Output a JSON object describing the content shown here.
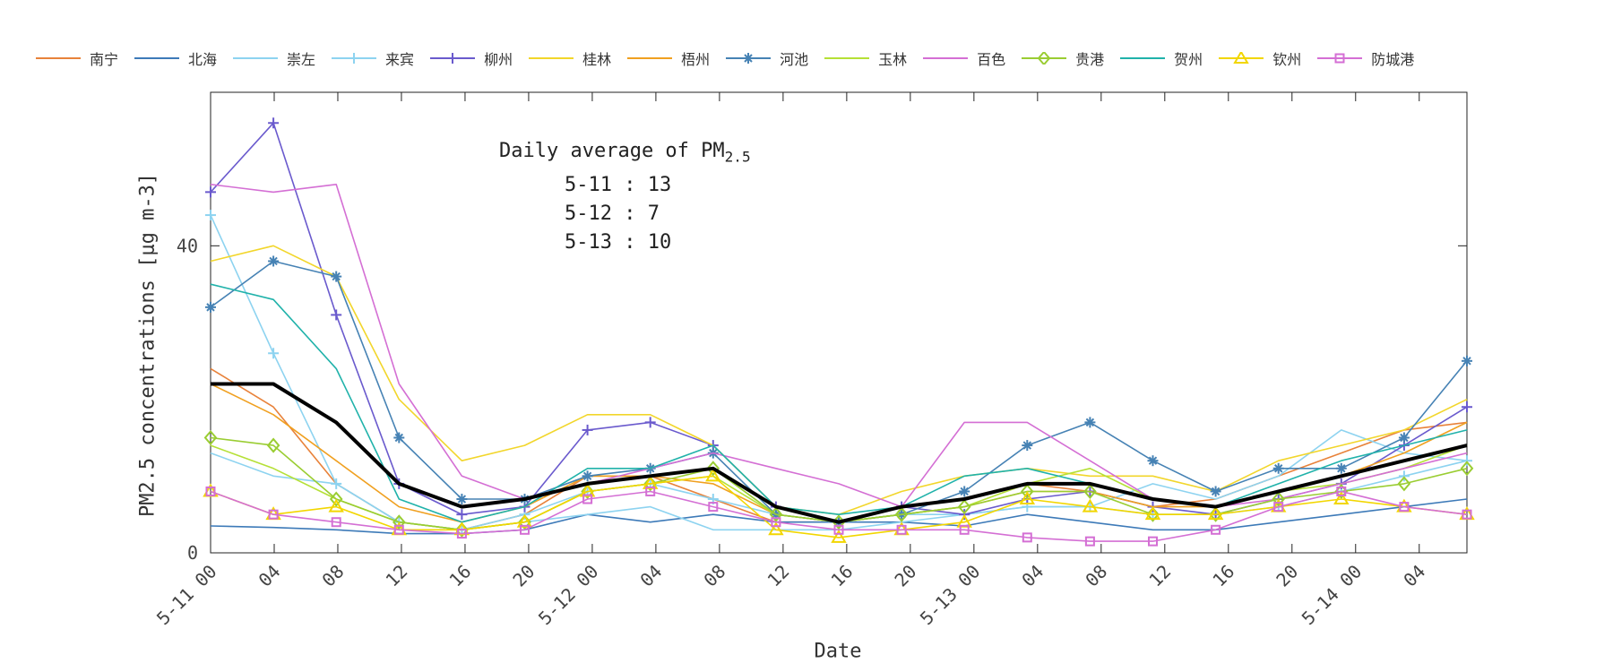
{
  "chart_data": {
    "type": "line",
    "title": "",
    "xlabel": "Date",
    "ylabel": "PM2.5 concentrations [μg m-3]",
    "ylim": [
      0,
      60
    ],
    "xlim": [
      "5-11 00",
      "5-14 07"
    ],
    "yticks": [
      "0",
      "40"
    ],
    "xticks": [
      "5-11 00",
      "04",
      "08",
      "12",
      "16",
      "20",
      "5-12 00",
      "04",
      "08",
      "12",
      "16",
      "20",
      "5-13 00",
      "04",
      "08",
      "12",
      "16",
      "20",
      "5-14 00",
      "04"
    ],
    "grid": false,
    "legend_position": "top",
    "annotation": {
      "heading_main": "Daily average of PM",
      "heading_sub": "2.5",
      "rows": [
        "5-11 : 13",
        "5-12 : 7",
        "5-13 : 10"
      ]
    },
    "x": [
      "5-11 00",
      "5-11 04",
      "5-11 08",
      "5-11 12",
      "5-11 16",
      "5-11 20",
      "5-12 00",
      "5-12 04",
      "5-12 08",
      "5-12 12",
      "5-12 16",
      "5-12 20",
      "5-13 00",
      "5-13 04",
      "5-13 08",
      "5-13 12",
      "5-13 16",
      "5-13 20",
      "5-14 00",
      "5-14 04",
      "5-14 07"
    ],
    "series": [
      {
        "name": "南宁",
        "color": "#e8823a",
        "marker": "none",
        "values": [
          24,
          19,
          9,
          4,
          3,
          5,
          10,
          10,
          7,
          4,
          4,
          6,
          7,
          9,
          8,
          6,
          7,
          10,
          13,
          16,
          17
        ]
      },
      {
        "name": "北海",
        "color": "#3d7ab8",
        "marker": "none",
        "values": [
          3.5,
          3.3,
          3,
          2.5,
          2.5,
          3,
          5,
          4,
          5,
          4,
          4,
          4,
          3.5,
          5,
          4,
          3,
          3,
          4,
          5,
          6,
          7
        ]
      },
      {
        "name": "崇左",
        "color": "#8dd3f0",
        "marker": "none",
        "values": [
          13,
          10,
          9,
          4,
          3,
          4,
          5,
          6,
          3,
          3,
          3,
          4,
          5,
          6,
          6,
          9,
          7,
          10,
          16,
          13,
          12
        ]
      },
      {
        "name": "来宾",
        "color": "#8dd3f0",
        "marker": "plus",
        "values": [
          44,
          26,
          9,
          4,
          3,
          5,
          8,
          9,
          7,
          5,
          4,
          5,
          5,
          6,
          6,
          5,
          5,
          6,
          8,
          10,
          12
        ]
      },
      {
        "name": "柳州",
        "color": "#6a5acd",
        "marker": "plus",
        "values": [
          47,
          56,
          31,
          9,
          5,
          6,
          16,
          17,
          14,
          6,
          4,
          6,
          5,
          7,
          8,
          6,
          5,
          7,
          9,
          14,
          19
        ]
      },
      {
        "name": "桂林",
        "color": "#f2d62b",
        "marker": "none",
        "values": [
          38,
          40,
          36,
          20,
          12,
          14,
          18,
          18,
          14,
          6,
          5,
          8,
          10,
          11,
          10,
          10,
          8,
          12,
          14,
          16,
          20
        ]
      },
      {
        "name": "梧州",
        "color": "#f0a020",
        "marker": "none",
        "values": [
          22,
          18,
          12,
          6,
          4,
          6,
          10,
          10,
          9,
          5,
          4,
          5,
          6,
          8,
          8,
          6,
          6,
          8,
          10,
          13,
          17
        ]
      },
      {
        "name": "河池",
        "color": "#4682b4",
        "marker": "asterisk",
        "values": [
          32,
          38,
          36,
          15,
          7,
          7,
          10,
          11,
          13,
          5,
          4,
          5,
          8,
          14,
          17,
          12,
          8,
          11,
          11,
          15,
          25
        ]
      },
      {
        "name": "玉林",
        "color": "#b5e036",
        "marker": "none",
        "values": [
          14,
          11,
          7,
          4,
          3,
          4,
          8,
          9,
          10,
          5,
          4,
          5,
          6,
          9,
          11,
          7,
          6,
          8,
          9,
          11,
          14
        ]
      },
      {
        "name": "百色",
        "color": "#d46fd4",
        "marker": "none",
        "values": [
          48,
          47,
          48,
          22,
          10,
          7,
          9,
          11,
          13,
          11,
          9,
          6,
          17,
          17,
          12,
          7,
          6,
          7,
          9,
          11,
          13
        ]
      },
      {
        "name": "贵港",
        "color": "#9acd32",
        "marker": "diamond",
        "values": [
          15,
          14,
          7,
          4,
          3,
          4,
          8,
          9,
          11,
          5,
          4,
          5,
          6,
          8,
          8,
          5,
          5,
          7,
          8,
          9,
          11
        ]
      },
      {
        "name": "贺州",
        "color": "#20b2aa",
        "marker": "none",
        "values": [
          35,
          33,
          24,
          7,
          4,
          6,
          11,
          11,
          14,
          6,
          5,
          6,
          10,
          11,
          9,
          7,
          6,
          9,
          12,
          14,
          16
        ]
      },
      {
        "name": "钦州",
        "color": "#f2d600",
        "marker": "triangle",
        "values": [
          8,
          5,
          6,
          3,
          3,
          4,
          8,
          9,
          10,
          3,
          2,
          3,
          4,
          7,
          6,
          5,
          5,
          6,
          7,
          6,
          5
        ]
      },
      {
        "name": "防城港",
        "color": "#d46fd4",
        "marker": "square",
        "values": [
          8,
          5,
          4,
          3,
          2.5,
          3,
          7,
          8,
          6,
          4,
          3,
          3,
          3,
          2,
          1.5,
          1.5,
          3,
          6,
          8,
          6,
          5
        ]
      },
      {
        "name": "",
        "color": "#000000",
        "marker": "none",
        "width": 4,
        "values": [
          22,
          22,
          17,
          9,
          6,
          7,
          9,
          10,
          11,
          6,
          4,
          6,
          7,
          9,
          9,
          7,
          6,
          8,
          10,
          12,
          14
        ]
      }
    ]
  }
}
